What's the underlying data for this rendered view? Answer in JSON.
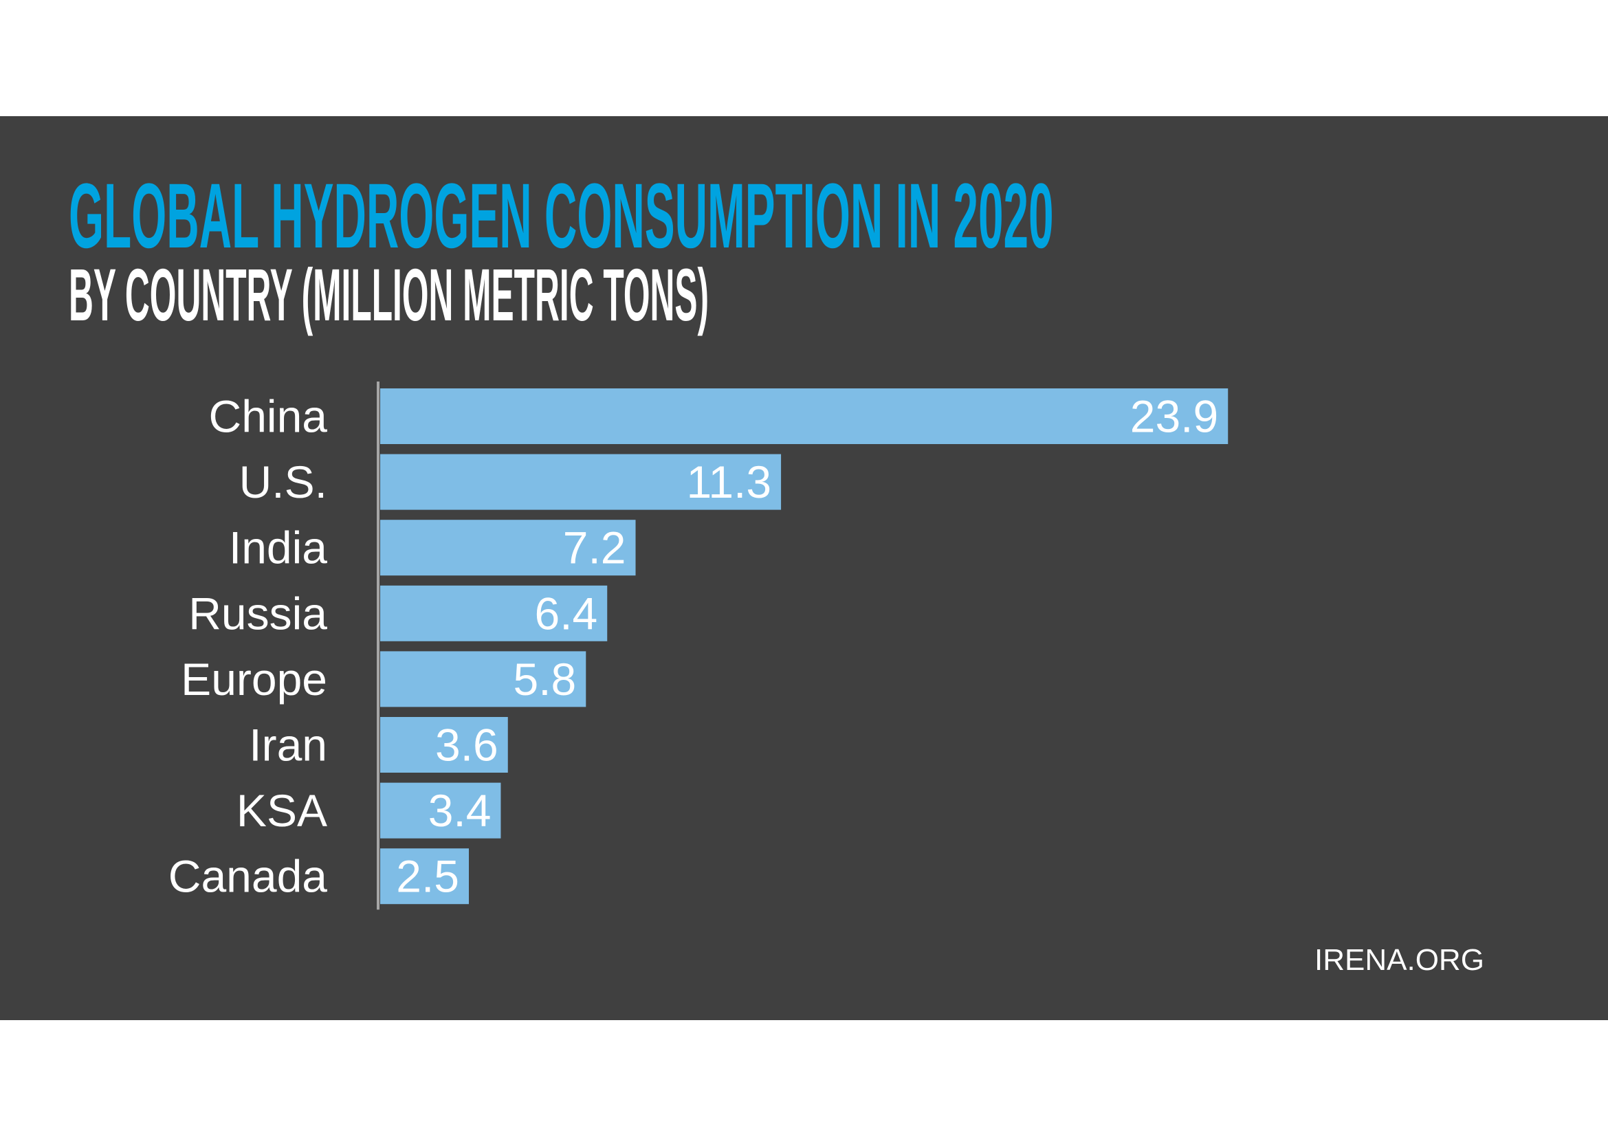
{
  "chart_data": {
    "type": "bar",
    "orientation": "horizontal",
    "title": "GLOBAL HYDROGEN CONSUMPTION IN 2020",
    "subtitle": "BY COUNTRY (MILLION METRIC TONS)",
    "categories": [
      "China",
      "U.S.",
      "India",
      "Russia",
      "Europe",
      "Iran",
      "KSA",
      "Canada"
    ],
    "values": [
      23.9,
      11.3,
      7.2,
      6.4,
      5.8,
      3.6,
      3.4,
      2.5
    ],
    "data_labels": [
      "23.9",
      "11.3",
      "7.2",
      "6.4",
      "5.8",
      "3.6",
      "3.4",
      "2.5"
    ],
    "xlim": [
      0,
      25
    ],
    "grid": false,
    "legend": "none",
    "colors": {
      "bar": "#7fbde6",
      "title": "#00a3e0",
      "background": "#404040",
      "axis": "#a6a6a6"
    }
  },
  "source": "IRENA.ORG"
}
